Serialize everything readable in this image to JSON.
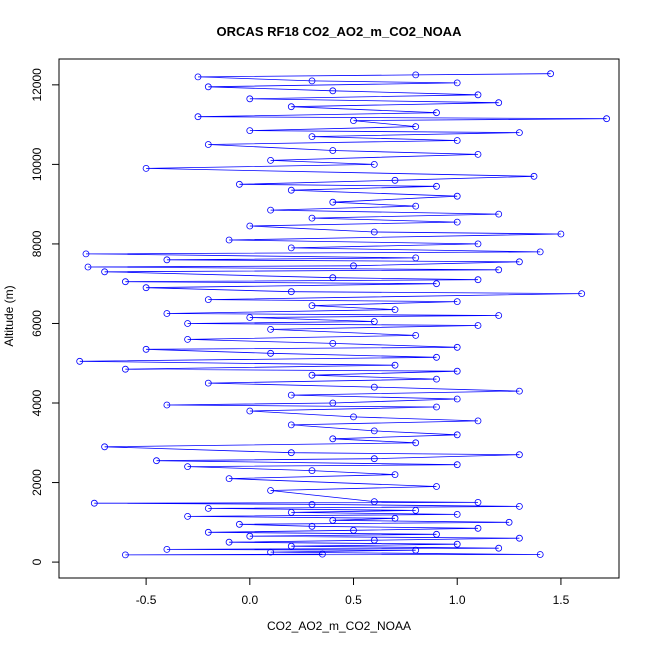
{
  "chart_data": {
    "type": "scatter",
    "title": "ORCAS RF18 CO2_AO2_m_CO2_NOAA",
    "xlabel": "CO2_AO2_m_CO2_NOAA",
    "ylabel": "Altitude (m)",
    "xlim": [
      -0.92,
      1.78
    ],
    "ylim": [
      -400,
      12650
    ],
    "xticks": [
      -0.5,
      0.0,
      0.5,
      1.0,
      1.5
    ],
    "xtick_labels": [
      "-0.5",
      "0.0",
      "0.5",
      "1.0",
      "1.5"
    ],
    "yticks": [
      0,
      2000,
      4000,
      6000,
      8000,
      10000,
      12000
    ],
    "ytick_labels": [
      "0",
      "2000",
      "4000",
      "6000",
      "8000",
      "10000",
      "12000"
    ],
    "grid": false,
    "legend": "none",
    "series": [
      {
        "color": "#0000ff",
        "marker": "open-circle",
        "connected": true,
        "points": [
          [
            0.35,
            200
          ],
          [
            -0.6,
            180
          ],
          [
            1.4,
            190
          ],
          [
            0.1,
            250
          ],
          [
            0.8,
            300
          ],
          [
            -0.4,
            320
          ],
          [
            1.2,
            350
          ],
          [
            0.2,
            400
          ],
          [
            1.0,
            450
          ],
          [
            -0.1,
            500
          ],
          [
            0.6,
            550
          ],
          [
            1.3,
            600
          ],
          [
            0.0,
            650
          ],
          [
            0.9,
            700
          ],
          [
            -0.2,
            750
          ],
          [
            0.5,
            800
          ],
          [
            1.1,
            850
          ],
          [
            0.3,
            900
          ],
          [
            -0.05,
            950
          ],
          [
            1.25,
            1000
          ],
          [
            0.4,
            1050
          ],
          [
            0.7,
            1100
          ],
          [
            -0.3,
            1150
          ],
          [
            1.0,
            1200
          ],
          [
            0.2,
            1250
          ],
          [
            0.8,
            1300
          ],
          [
            -0.2,
            1350
          ],
          [
            1.3,
            1400
          ],
          [
            0.3,
            1450
          ],
          [
            -0.75,
            1480
          ],
          [
            1.1,
            1500
          ],
          [
            0.6,
            1520
          ],
          [
            0.1,
            1800
          ],
          [
            0.9,
            1900
          ],
          [
            -0.1,
            2100
          ],
          [
            0.7,
            2200
          ],
          [
            0.3,
            2300
          ],
          [
            -0.3,
            2400
          ],
          [
            1.0,
            2450
          ],
          [
            -0.45,
            2550
          ],
          [
            0.6,
            2600
          ],
          [
            1.3,
            2700
          ],
          [
            0.2,
            2750
          ],
          [
            -0.7,
            2900
          ],
          [
            0.8,
            3000
          ],
          [
            0.4,
            3100
          ],
          [
            1.0,
            3200
          ],
          [
            0.6,
            3300
          ],
          [
            0.2,
            3450
          ],
          [
            1.1,
            3550
          ],
          [
            0.5,
            3650
          ],
          [
            0.0,
            3800
          ],
          [
            0.9,
            3900
          ],
          [
            -0.4,
            3950
          ],
          [
            0.4,
            4000
          ],
          [
            1.0,
            4100
          ],
          [
            0.2,
            4200
          ],
          [
            1.3,
            4300
          ],
          [
            0.6,
            4400
          ],
          [
            -0.2,
            4500
          ],
          [
            0.9,
            4600
          ],
          [
            0.3,
            4700
          ],
          [
            1.0,
            4800
          ],
          [
            -0.6,
            4850
          ],
          [
            0.7,
            4950
          ],
          [
            -0.82,
            5050
          ],
          [
            0.9,
            5150
          ],
          [
            0.1,
            5250
          ],
          [
            -0.5,
            5350
          ],
          [
            1.0,
            5400
          ],
          [
            0.4,
            5500
          ],
          [
            -0.3,
            5600
          ],
          [
            0.8,
            5700
          ],
          [
            0.1,
            5850
          ],
          [
            1.1,
            5950
          ],
          [
            -0.3,
            6000
          ],
          [
            0.6,
            6050
          ],
          [
            0.0,
            6150
          ],
          [
            1.2,
            6200
          ],
          [
            -0.4,
            6250
          ],
          [
            0.7,
            6350
          ],
          [
            0.3,
            6450
          ],
          [
            1.0,
            6550
          ],
          [
            -0.2,
            6600
          ],
          [
            1.6,
            6750
          ],
          [
            0.2,
            6800
          ],
          [
            -0.5,
            6900
          ],
          [
            0.9,
            7000
          ],
          [
            -0.6,
            7050
          ],
          [
            1.1,
            7100
          ],
          [
            0.4,
            7150
          ],
          [
            -0.7,
            7300
          ],
          [
            1.2,
            7350
          ],
          [
            -0.78,
            7420
          ],
          [
            0.5,
            7450
          ],
          [
            1.3,
            7550
          ],
          [
            -0.4,
            7600
          ],
          [
            0.8,
            7650
          ],
          [
            -0.79,
            7750
          ],
          [
            1.4,
            7800
          ],
          [
            0.2,
            7900
          ],
          [
            1.1,
            8000
          ],
          [
            -0.1,
            8100
          ],
          [
            1.5,
            8250
          ],
          [
            0.6,
            8300
          ],
          [
            0.0,
            8450
          ],
          [
            1.0,
            8550
          ],
          [
            0.3,
            8650
          ],
          [
            1.2,
            8750
          ],
          [
            0.1,
            8850
          ],
          [
            0.8,
            8950
          ],
          [
            0.4,
            9050
          ],
          [
            1.0,
            9200
          ],
          [
            0.2,
            9350
          ],
          [
            0.9,
            9450
          ],
          [
            -0.05,
            9500
          ],
          [
            0.7,
            9600
          ],
          [
            1.37,
            9700
          ],
          [
            -0.5,
            9900
          ],
          [
            0.6,
            10000
          ],
          [
            0.1,
            10100
          ],
          [
            1.1,
            10250
          ],
          [
            0.4,
            10350
          ],
          [
            -0.2,
            10500
          ],
          [
            1.0,
            10600
          ],
          [
            0.3,
            10700
          ],
          [
            1.3,
            10800
          ],
          [
            0.0,
            10850
          ],
          [
            0.8,
            10950
          ],
          [
            0.5,
            11100
          ],
          [
            1.72,
            11150
          ],
          [
            -0.25,
            11200
          ],
          [
            0.9,
            11300
          ],
          [
            0.2,
            11450
          ],
          [
            1.2,
            11550
          ],
          [
            0.0,
            11650
          ],
          [
            1.1,
            11750
          ],
          [
            0.4,
            11850
          ],
          [
            -0.2,
            11950
          ],
          [
            1.0,
            12050
          ],
          [
            0.3,
            12100
          ],
          [
            -0.25,
            12200
          ],
          [
            0.8,
            12250
          ],
          [
            1.45,
            12280
          ]
        ]
      }
    ]
  }
}
